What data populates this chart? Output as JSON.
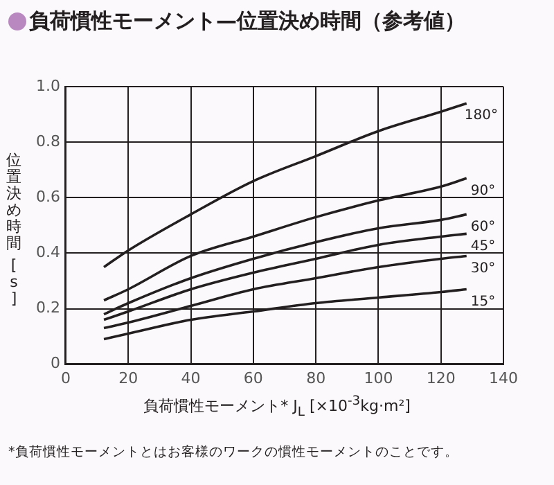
{
  "chart_data": {
    "type": "line",
    "title": "負荷慣性モーメント—位置決め時間（参考値）",
    "xlabel": "負荷慣性モーメント* J$_{L}$ [×10$^{-3}$kg·m²]",
    "ylabel": "位置決め時間 [s]",
    "x": [
      12.2,
      20,
      40,
      60,
      80,
      100,
      120,
      128.2
    ],
    "series": [
      {
        "name": "180°",
        "color": "#231f20",
        "values": [
          0.35,
          0.41,
          0.54,
          0.66,
          0.75,
          0.84,
          0.91,
          0.94
        ]
      },
      {
        "name": "90°",
        "color": "#231f20",
        "values": [
          0.23,
          0.27,
          0.39,
          0.46,
          0.53,
          0.59,
          0.64,
          0.67
        ]
      },
      {
        "name": "60°",
        "color": "#231f20",
        "values": [
          0.18,
          0.22,
          0.31,
          0.38,
          0.44,
          0.49,
          0.52,
          0.54
        ]
      },
      {
        "name": "45°",
        "color": "#231f20",
        "values": [
          0.16,
          0.19,
          0.27,
          0.33,
          0.38,
          0.43,
          0.46,
          0.47
        ]
      },
      {
        "name": "30°",
        "color": "#231f20",
        "values": [
          0.13,
          0.15,
          0.21,
          0.27,
          0.31,
          0.35,
          0.38,
          0.39
        ]
      },
      {
        "name": "15°",
        "color": "#231f20",
        "values": [
          0.09,
          0.11,
          0.16,
          0.19,
          0.22,
          0.24,
          0.26,
          0.27
        ]
      }
    ],
    "xlim": [
      0,
      140
    ],
    "xticks": [
      0,
      20,
      40,
      60,
      80,
      100,
      120,
      140
    ],
    "ylim": [
      0,
      1
    ],
    "yticks": [
      {
        "value": 0,
        "label": "0"
      },
      {
        "value": 0.2,
        "label": "0.2"
      },
      {
        "value": 0.4,
        "label": "0.4"
      },
      {
        "value": 0.6,
        "label": "0.6"
      },
      {
        "value": 0.8,
        "label": "0.8"
      },
      {
        "value": 1,
        "label": "1.0"
      }
    ],
    "grid": true,
    "legend": false,
    "marker": "none",
    "line_style": "solid",
    "annotations": [
      "*負荷慣性モーメントとはお客様のワークの慣性モーメントのことです。"
    ]
  }
}
